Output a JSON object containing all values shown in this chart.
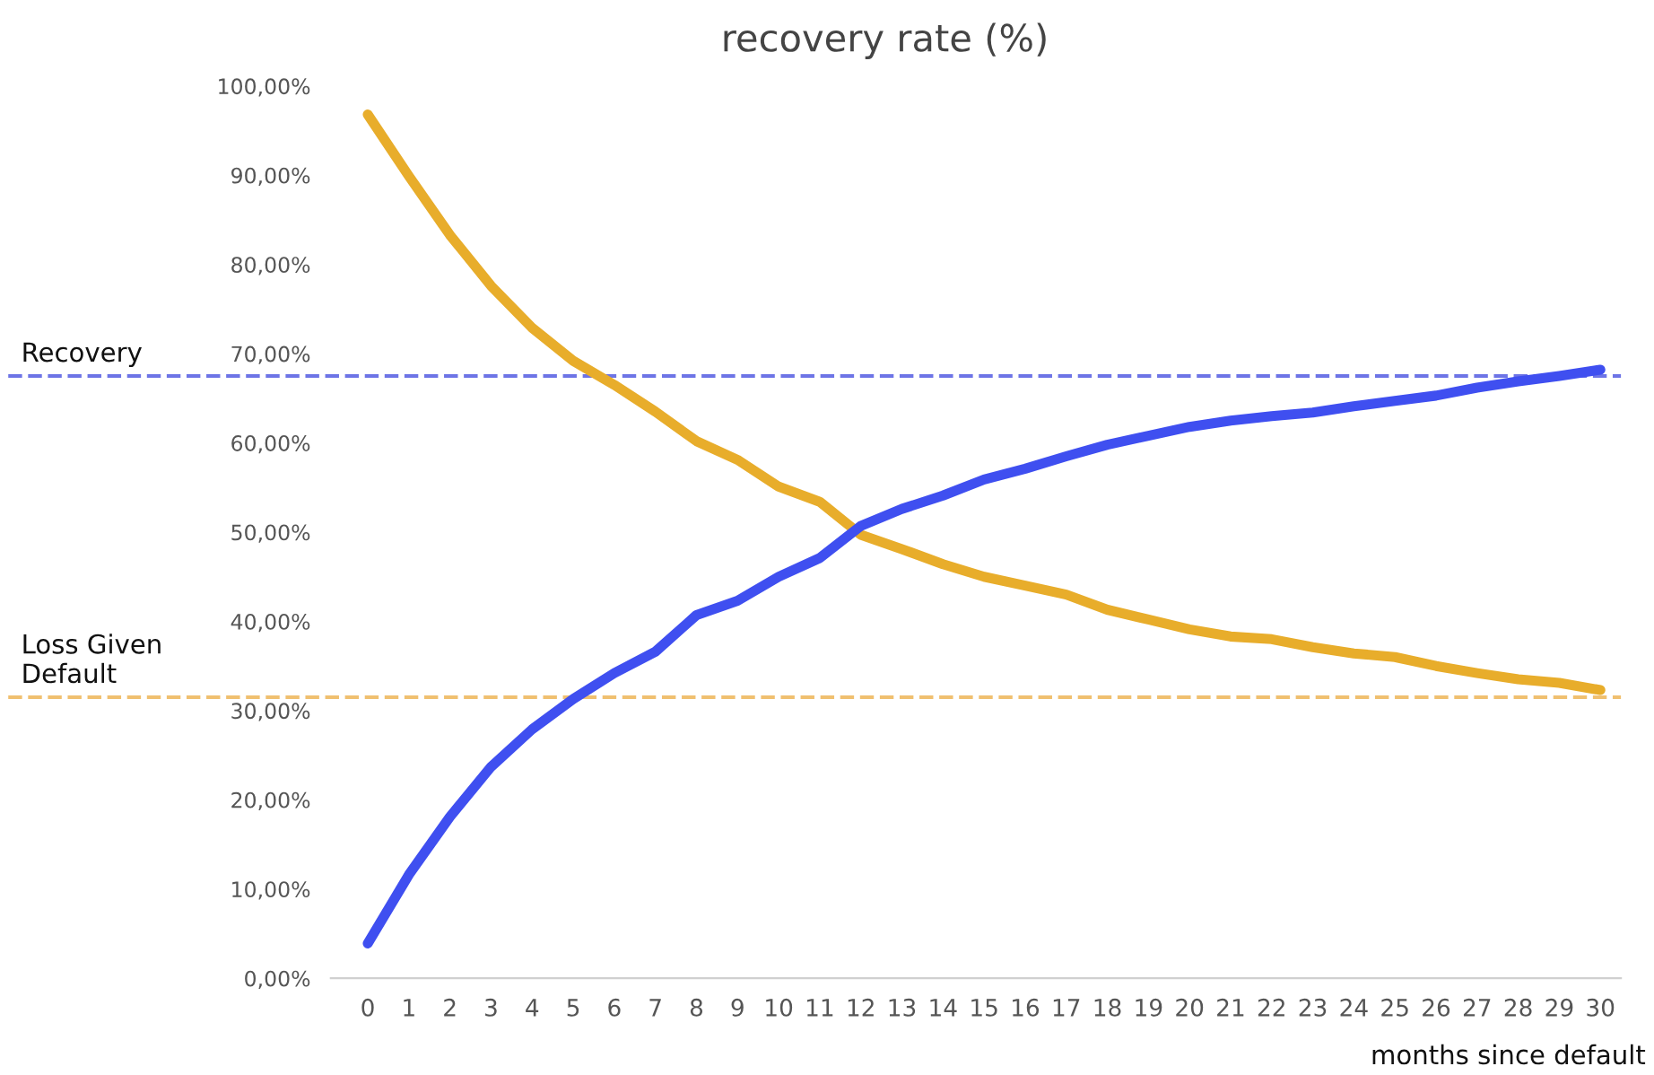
{
  "chart_data": {
    "type": "line",
    "title": "recovery rate (%)",
    "xlabel": "months since default",
    "categories": [
      "0",
      "1",
      "2",
      "3",
      "4",
      "5",
      "6",
      "7",
      "8",
      "9",
      "10",
      "11",
      "12",
      "13",
      "14",
      "15",
      "16",
      "17",
      "18",
      "19",
      "20",
      "21",
      "22",
      "23",
      "24",
      "25",
      "26",
      "27",
      "28",
      "29",
      "30"
    ],
    "series": [
      {
        "color": "#e8ad2b",
        "values": [
          96.8,
          89.9,
          83.3,
          77.6,
          72.9,
          69.2,
          66.5,
          63.5,
          60.2,
          58.1,
          55.1,
          53.4,
          49.7,
          48.1,
          46.4,
          45.0,
          44.0,
          43.0,
          41.3,
          40.2,
          39.1,
          38.3,
          38.0,
          37.1,
          36.4,
          36.0,
          35.0,
          34.2,
          33.5,
          33.1,
          32.3
        ]
      },
      {
        "color": "#3f4ff0",
        "values": [
          3.9,
          11.6,
          18.1,
          23.7,
          27.9,
          31.3,
          34.2,
          36.6,
          40.7,
          42.3,
          45.0,
          47.1,
          50.7,
          52.6,
          54.1,
          55.9,
          57.1,
          58.5,
          59.8,
          60.8,
          61.8,
          62.5,
          63.0,
          63.4,
          64.1,
          64.7,
          65.3,
          66.2,
          66.9,
          67.5,
          68.2
        ]
      }
    ],
    "ylim": [
      0,
      100
    ],
    "yticks": [
      {
        "value": 0,
        "label": "0,00%"
      },
      {
        "value": 10,
        "label": "10,00%"
      },
      {
        "value": 20,
        "label": "20,00%"
      },
      {
        "value": 30,
        "label": "30,00%"
      },
      {
        "value": 40,
        "label": "40,00%"
      },
      {
        "value": 50,
        "label": "50,00%"
      },
      {
        "value": 60,
        "label": "60,00%"
      },
      {
        "value": 70,
        "label": "70,00%"
      },
      {
        "value": 80,
        "label": "80,00%"
      },
      {
        "value": 90,
        "label": "90,00%"
      },
      {
        "value": 100,
        "label": "100,00%"
      }
    ],
    "ref_lines": [
      {
        "axis": "y",
        "value": 67.5,
        "label": "Recovery",
        "color": "#6d74e6",
        "line_style": "dashed"
      },
      {
        "axis": "y",
        "value": 31.5,
        "label": "Loss Given\nDefault",
        "color": "#f0c070",
        "line_style": "dashed"
      }
    ],
    "grid": false,
    "legend": false,
    "marker": "none",
    "line_style": "solid"
  }
}
